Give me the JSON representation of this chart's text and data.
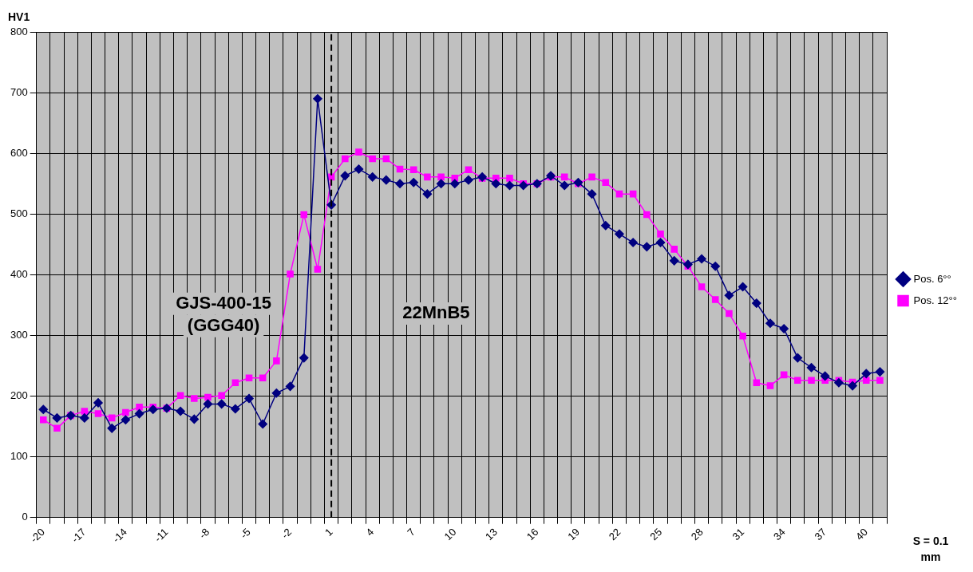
{
  "chart_data": {
    "type": "line",
    "ylabel": "HV1",
    "xlabel": "S = 0.1\nmm",
    "categories": [
      "-20",
      null,
      null,
      "-17",
      null,
      null,
      "-14",
      null,
      null,
      "-11",
      null,
      null,
      "-8",
      null,
      null,
      "-5",
      null,
      null,
      "-2",
      null,
      null,
      "1",
      null,
      null,
      "4",
      null,
      null,
      "7",
      null,
      null,
      "10",
      null,
      null,
      "13",
      null,
      null,
      "16",
      null,
      null,
      "19",
      null,
      null,
      "22",
      null,
      null,
      "25",
      null,
      null,
      "28",
      null,
      null,
      "31",
      null,
      null,
      "34",
      null,
      null,
      "37",
      null,
      null,
      "40",
      null
    ],
    "series": [
      {
        "name": "Pos. 6°°",
        "color": "#000080",
        "marker": "diamond",
        "values": [
          178,
          164,
          168,
          164,
          189,
          147,
          161,
          171,
          178,
          180,
          175,
          162,
          187,
          187,
          179,
          196,
          154,
          205,
          216,
          263,
          690,
          515,
          563,
          574,
          561,
          556,
          550,
          552,
          533,
          550,
          550,
          556,
          561,
          550,
          547,
          547,
          550,
          563,
          547,
          552,
          533,
          481,
          467,
          453,
          446,
          453,
          423,
          417,
          426,
          414,
          366,
          380,
          353,
          320,
          311,
          263,
          247,
          233,
          222,
          217,
          237,
          240
        ]
      },
      {
        "name": "Pos. 12°°",
        "color": "#ff00ff",
        "marker": "square",
        "values": [
          161,
          147,
          168,
          175,
          171,
          164,
          173,
          182,
          182,
          180,
          201,
          196,
          198,
          201,
          222,
          230,
          230,
          258,
          401,
          499,
          409,
          561,
          591,
          602,
          591,
          591,
          574,
          573,
          561,
          561,
          559,
          573,
          559,
          559,
          559,
          550,
          550,
          561,
          561,
          550,
          561,
          552,
          533,
          533,
          499,
          467,
          442,
          414,
          380,
          359,
          336,
          299,
          222,
          217,
          235,
          226,
          226,
          226,
          226,
          223,
          226,
          226
        ]
      }
    ],
    "ylim": [
      0,
      800
    ],
    "yticks": [
      0,
      100,
      200,
      300,
      400,
      500,
      600,
      700,
      800
    ],
    "grid": true,
    "legend": "right",
    "line_style": "solid",
    "ref_lines": [
      {
        "axis": "x",
        "value": "1",
        "line_style": "dashed",
        "color": "#000000"
      }
    ],
    "annotations": [
      "GJS-400-15\n(GGG40)",
      "22MnB5"
    ]
  }
}
